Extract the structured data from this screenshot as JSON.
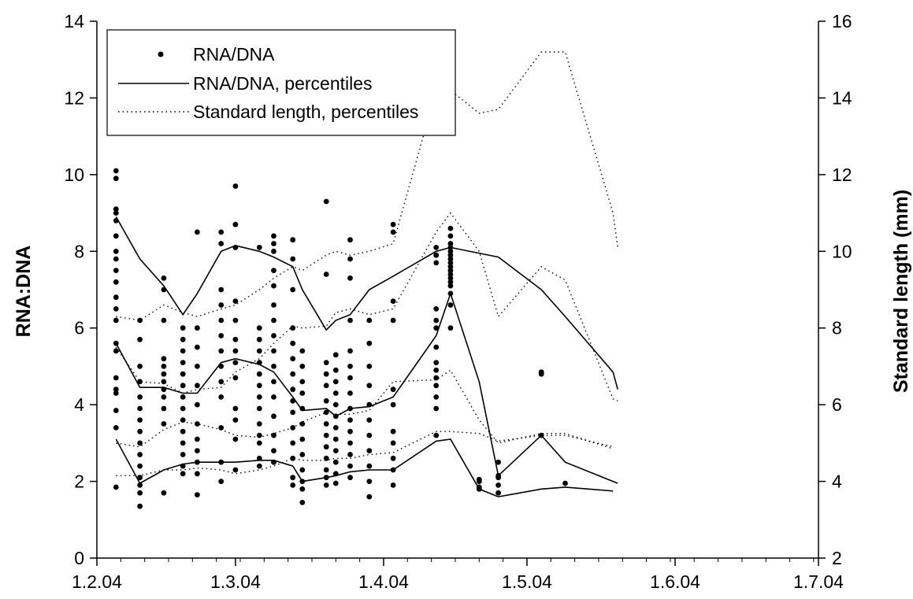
{
  "chart_data": {
    "type": "scatter",
    "title": "",
    "xlabel": "",
    "ylabel": "RNA:DNA",
    "y2label": "Standard length (mm)",
    "x_ticks": [
      "1.2.04",
      "1.3.04",
      "1.4.04",
      "1.5.04",
      "1.6.04",
      "1.7.04"
    ],
    "x_tick_values": [
      "2004-02-01",
      "2004-03-01",
      "2004-04-01",
      "2004-05-01",
      "2004-06-01",
      "2004-07-01"
    ],
    "xlim": [
      "2004-02-01",
      "2004-07-01"
    ],
    "ylim": [
      0,
      14
    ],
    "y_ticks": [
      0,
      2,
      4,
      6,
      8,
      10,
      12,
      14
    ],
    "y2lim": [
      2,
      16
    ],
    "y2_ticks": [
      2,
      4,
      6,
      8,
      10,
      12,
      14,
      16
    ],
    "grid": false,
    "legend": {
      "position": "top-left",
      "entries": [
        {
          "label": "RNA/DNA",
          "style": "marker"
        },
        {
          "label": "RNA/DNA, percentiles",
          "style": "solid"
        },
        {
          "label": "Standard length, percentiles",
          "style": "dotted"
        }
      ]
    },
    "scatter": {
      "name": "RNA/DNA",
      "groups": [
        {
          "date": "2004-02-05",
          "y": [
            1.85,
            3.4,
            3.85,
            4.3,
            4.4,
            4.7,
            5.4,
            5.6,
            6.2,
            6.5,
            6.8,
            7.2,
            7.5,
            7.8,
            8.0,
            8.4,
            8.8,
            9.0,
            9.1,
            9.9,
            10.1
          ]
        },
        {
          "date": "2004-02-10",
          "y": [
            1.35,
            1.7,
            1.9,
            2.1,
            2.4,
            2.7,
            3.0,
            3.3,
            3.6,
            3.9,
            4.2,
            4.6,
            5.0,
            5.7,
            6.2
          ]
        },
        {
          "date": "2004-02-15",
          "y": [
            1.7,
            3.5,
            3.9,
            4.2,
            4.4,
            4.6,
            4.8,
            5.0,
            5.2,
            6.2,
            7.0,
            7.3
          ]
        },
        {
          "date": "2004-02-19",
          "y": [
            2.2,
            2.4,
            2.7,
            3.0,
            3.3,
            3.6,
            3.9,
            4.2,
            4.5,
            4.8,
            5.1,
            5.4,
            5.7,
            6.0
          ]
        },
        {
          "date": "2004-02-22",
          "y": [
            1.65,
            2.2,
            2.5,
            2.8,
            3.1,
            3.5,
            4.0,
            4.5,
            5.0,
            5.5,
            6.0,
            8.5
          ]
        },
        {
          "date": "2004-02-27",
          "y": [
            2.0,
            2.5,
            3.4,
            4.2,
            4.6,
            5.0,
            5.4,
            5.8,
            6.2,
            6.6,
            7.0,
            8.2,
            8.5
          ]
        },
        {
          "date": "2004-03-01",
          "y": [
            2.3,
            3.1,
            3.6,
            3.9,
            4.7,
            5.1,
            5.4,
            5.7,
            6.2,
            6.7,
            8.1,
            8.7,
            9.7
          ]
        },
        {
          "date": "2004-03-06",
          "y": [
            2.4,
            2.6,
            3.0,
            3.2,
            3.5,
            3.9,
            4.2,
            4.5,
            4.8,
            5.1,
            5.4,
            5.7,
            6.0,
            8.1
          ]
        },
        {
          "date": "2004-03-09",
          "y": [
            2.5,
            2.8,
            3.2,
            3.7,
            4.2,
            4.6,
            5.0,
            5.4,
            5.8,
            6.2,
            6.6,
            7.1,
            7.5,
            8.0,
            8.2,
            8.4
          ]
        },
        {
          "date": "2004-03-13",
          "y": [
            1.9,
            2.1,
            2.6,
            3.0,
            3.4,
            3.8,
            4.1,
            4.4,
            4.8,
            5.2,
            5.6,
            6.0,
            7.0,
            7.8,
            8.3
          ]
        },
        {
          "date": "2004-03-15",
          "y": [
            1.45,
            1.8,
            2.0,
            2.3,
            2.7,
            3.1,
            3.5,
            3.9,
            4.3,
            4.6,
            5.0,
            5.4
          ]
        },
        {
          "date": "2004-03-20",
          "y": [
            1.9,
            2.1,
            2.3,
            2.6,
            2.9,
            3.2,
            3.5,
            3.8,
            4.1,
            4.5,
            4.8,
            5.1,
            7.4,
            9.3
          ]
        },
        {
          "date": "2004-03-22",
          "y": [
            1.95,
            2.2,
            2.5,
            2.8,
            3.1,
            3.4,
            3.7,
            4.0,
            4.3,
            4.6,
            4.9,
            5.3
          ]
        },
        {
          "date": "2004-03-25",
          "y": [
            2.1,
            2.4,
            2.7,
            3.0,
            3.3,
            3.6,
            3.9,
            4.3,
            4.7,
            5.0,
            5.4,
            6.2,
            7.3,
            7.8,
            8.3
          ]
        },
        {
          "date": "2004-03-29",
          "y": [
            1.6,
            2.0,
            2.4,
            2.8,
            3.2,
            3.6,
            4.0,
            4.5,
            5.0,
            5.6,
            6.2
          ]
        },
        {
          "date": "2004-04-03",
          "y": [
            1.9,
            2.3,
            2.6,
            3.0,
            3.3,
            4.0,
            4.4,
            6.2,
            6.7,
            8.5,
            8.7
          ]
        },
        {
          "date": "2004-04-12",
          "y": [
            3.2,
            3.9,
            4.2,
            4.5,
            4.7,
            4.9,
            5.1,
            5.5,
            6.0,
            6.2,
            6.5,
            7.7,
            7.9,
            8.1
          ]
        },
        {
          "date": "2004-04-15",
          "y": [
            6.0,
            6.6,
            6.9,
            7.1,
            7.2,
            7.3,
            7.4,
            7.5,
            7.6,
            7.7,
            7.8,
            7.9,
            8.0,
            8.1,
            8.2,
            8.4,
            8.6
          ]
        },
        {
          "date": "2004-04-21",
          "y": [
            1.8,
            1.85,
            2.0,
            2.05
          ]
        },
        {
          "date": "2004-04-25",
          "y": [
            1.7,
            1.9,
            2.1,
            2.15,
            2.5
          ]
        },
        {
          "date": "2004-05-04",
          "y": [
            3.2,
            4.8,
            4.85
          ]
        },
        {
          "date": "2004-05-09",
          "y": [
            1.95
          ]
        }
      ]
    },
    "series": [
      {
        "axis": "left",
        "style": "solid",
        "x": [
          "2004-02-05",
          "2004-02-10",
          "2004-02-15",
          "2004-02-19",
          "2004-02-22",
          "2004-02-27",
          "2004-03-01",
          "2004-03-06",
          "2004-03-09",
          "2004-03-13",
          "2004-03-15",
          "2004-03-20",
          "2004-03-22",
          "2004-03-25",
          "2004-03-29",
          "2004-04-03",
          "2004-04-12",
          "2004-04-15",
          "2004-04-21",
          "2004-04-25",
          "2004-05-04",
          "2004-05-09",
          "2004-05-19"
        ],
        "values": [
          3.1,
          1.95,
          2.3,
          2.45,
          2.5,
          2.5,
          2.5,
          2.55,
          2.55,
          2.4,
          2.0,
          2.1,
          2.15,
          2.25,
          2.3,
          2.3,
          3.05,
          3.1,
          1.8,
          1.6,
          1.8,
          1.85,
          1.75
        ]
      },
      {
        "axis": "left",
        "style": "solid",
        "x": [
          "2004-02-05",
          "2004-02-10",
          "2004-02-15",
          "2004-02-19",
          "2004-02-22",
          "2004-02-27",
          "2004-03-01",
          "2004-03-06",
          "2004-03-09",
          "2004-03-13",
          "2004-03-15",
          "2004-03-20",
          "2004-03-22",
          "2004-03-25",
          "2004-03-29",
          "2004-04-03",
          "2004-04-12",
          "2004-04-15",
          "2004-04-21",
          "2004-04-25",
          "2004-05-04",
          "2004-05-09",
          "2004-05-19",
          "2004-05-20"
        ],
        "values": [
          5.6,
          4.45,
          4.45,
          4.3,
          4.3,
          5.1,
          5.2,
          5.05,
          4.85,
          4.2,
          3.85,
          3.9,
          3.7,
          3.9,
          3.95,
          4.2,
          5.8,
          6.9,
          4.6,
          2.15,
          3.2,
          2.5,
          2.0,
          1.95
        ]
      },
      {
        "axis": "left",
        "style": "solid",
        "x": [
          "2004-02-05",
          "2004-02-10",
          "2004-02-15",
          "2004-02-19",
          "2004-02-22",
          "2004-02-27",
          "2004-03-01",
          "2004-03-06",
          "2004-03-09",
          "2004-03-13",
          "2004-03-15",
          "2004-03-20",
          "2004-03-22",
          "2004-03-25",
          "2004-03-29",
          "2004-04-03",
          "2004-04-12",
          "2004-04-15",
          "2004-04-25",
          "2004-05-04",
          "2004-05-09",
          "2004-05-19",
          "2004-05-20"
        ],
        "values": [
          8.9,
          7.8,
          7.1,
          6.35,
          6.9,
          8.0,
          8.15,
          8.0,
          7.85,
          7.6,
          7.0,
          5.95,
          6.2,
          6.35,
          7.0,
          7.35,
          8.0,
          8.1,
          7.85,
          7.0,
          6.3,
          4.85,
          4.4
        ]
      },
      {
        "axis": "right",
        "style": "dotted",
        "x": [
          "2004-02-05",
          "2004-02-10",
          "2004-02-15",
          "2004-02-19",
          "2004-02-22",
          "2004-02-27",
          "2004-03-01",
          "2004-03-06",
          "2004-03-09",
          "2004-03-13",
          "2004-03-15",
          "2004-03-20",
          "2004-03-22",
          "2004-03-25",
          "2004-03-29",
          "2004-04-03",
          "2004-04-12",
          "2004-04-15",
          "2004-04-21",
          "2004-04-25",
          "2004-05-04",
          "2004-05-09",
          "2004-05-19"
        ],
        "values": [
          4.15,
          4.15,
          4.3,
          4.3,
          4.35,
          4.3,
          4.2,
          4.3,
          4.4,
          4.6,
          4.55,
          4.55,
          4.6,
          4.6,
          4.7,
          4.75,
          5.3,
          5.3,
          5.25,
          5.05,
          5.2,
          5.2,
          4.9
        ]
      },
      {
        "axis": "right",
        "style": "dotted",
        "x": [
          "2004-02-05",
          "2004-02-10",
          "2004-02-15",
          "2004-02-19",
          "2004-02-22",
          "2004-02-27",
          "2004-03-01",
          "2004-03-06",
          "2004-03-09",
          "2004-03-13",
          "2004-03-15",
          "2004-03-20",
          "2004-03-22",
          "2004-03-25",
          "2004-03-29",
          "2004-04-03",
          "2004-04-12",
          "2004-04-15",
          "2004-04-21",
          "2004-04-25",
          "2004-05-04",
          "2004-05-09",
          "2004-05-19"
        ],
        "values": [
          5.0,
          4.9,
          5.35,
          5.55,
          5.5,
          5.35,
          5.2,
          5.15,
          5.25,
          5.4,
          5.55,
          5.8,
          5.75,
          5.75,
          5.85,
          6.6,
          6.65,
          6.9,
          5.6,
          5.0,
          5.25,
          5.25,
          4.85
        ]
      },
      {
        "axis": "right",
        "style": "dotted",
        "x": [
          "2004-02-05",
          "2004-02-10",
          "2004-02-15",
          "2004-02-19",
          "2004-02-22",
          "2004-02-27",
          "2004-03-01",
          "2004-03-06",
          "2004-03-09",
          "2004-03-13",
          "2004-03-15",
          "2004-03-20",
          "2004-03-22",
          "2004-03-25",
          "2004-03-29",
          "2004-04-03",
          "2004-04-12",
          "2004-04-15",
          "2004-04-21",
          "2004-04-25",
          "2004-05-04",
          "2004-05-09",
          "2004-05-19",
          "2004-05-20"
        ],
        "values": [
          7.5,
          6.6,
          6.55,
          6.3,
          6.4,
          6.45,
          6.85,
          7.2,
          7.6,
          8.05,
          8.0,
          8.05,
          8.4,
          8.5,
          8.35,
          8.5,
          10.5,
          11.0,
          10.0,
          8.3,
          9.6,
          9.25,
          6.15,
          6.1
        ]
      },
      {
        "axis": "right",
        "style": "dotted",
        "x": [
          "2004-02-05",
          "2004-02-10",
          "2004-02-15",
          "2004-02-19",
          "2004-02-22",
          "2004-02-27",
          "2004-03-01",
          "2004-03-06",
          "2004-03-09",
          "2004-03-13",
          "2004-03-15",
          "2004-03-20",
          "2004-03-22",
          "2004-03-25",
          "2004-03-29",
          "2004-04-03",
          "2004-04-12",
          "2004-04-15",
          "2004-04-21",
          "2004-04-25",
          "2004-05-04",
          "2004-05-09",
          "2004-05-19",
          "2004-05-20"
        ],
        "values": [
          8.3,
          8.2,
          8.6,
          8.4,
          8.3,
          8.5,
          8.6,
          9.0,
          9.3,
          9.6,
          9.5,
          9.9,
          10.0,
          9.9,
          10.0,
          10.2,
          14.2,
          14.2,
          13.6,
          13.7,
          15.2,
          15.2,
          11.0,
          10.1
        ]
      }
    ]
  }
}
